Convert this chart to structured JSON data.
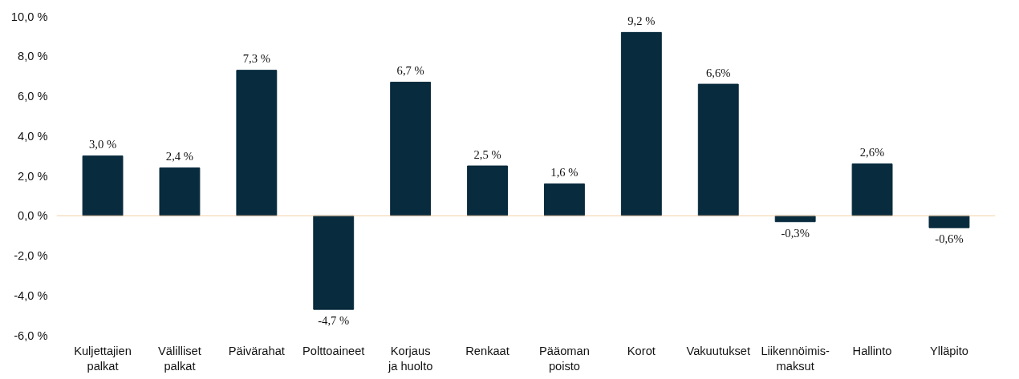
{
  "chart_data": {
    "type": "bar",
    "categories": [
      "Kuljettajien palkat",
      "Välilliset palkat",
      "Päivärahat",
      "Polttoaineet",
      "Korjaus ja huolto",
      "Renkaat",
      "Pääoman poisto",
      "Korot",
      "Vakuutukset",
      "Liikennöimis-maksut",
      "Hallinto",
      "Ylläpito"
    ],
    "values": [
      3.0,
      2.4,
      7.3,
      -4.7,
      6.7,
      2.5,
      1.6,
      9.2,
      6.6,
      -0.3,
      2.6,
      -0.6
    ],
    "value_labels": [
      "3,0 %",
      "2,4 %",
      "7,3 %",
      "-4,7 %",
      "6,7 %",
      "2,5 %",
      "1,6 %",
      "9,2 %",
      "6,6%",
      "-0,3%",
      "2,6%",
      "-0,6%"
    ],
    "color": "#082b3d",
    "ylim": [
      -6,
      10
    ],
    "yticks": [
      {
        "value": -6,
        "label": "-6,0 %"
      },
      {
        "value": -4,
        "label": "-4,0 %"
      },
      {
        "value": -2,
        "label": "-2,0 %"
      },
      {
        "value": 0,
        "label": "0,0 %"
      },
      {
        "value": 2,
        "label": "2,0 %"
      },
      {
        "value": 4,
        "label": "4,0 %"
      },
      {
        "value": 6,
        "label": "6,0 %"
      },
      {
        "value": 8,
        "label": "8,0 %"
      },
      {
        "value": 10,
        "label": "10,0 %"
      }
    ],
    "ref_lines": [
      {
        "axis": "y",
        "value": 0,
        "color": "#f2cfa5"
      }
    ],
    "grid": false
  }
}
